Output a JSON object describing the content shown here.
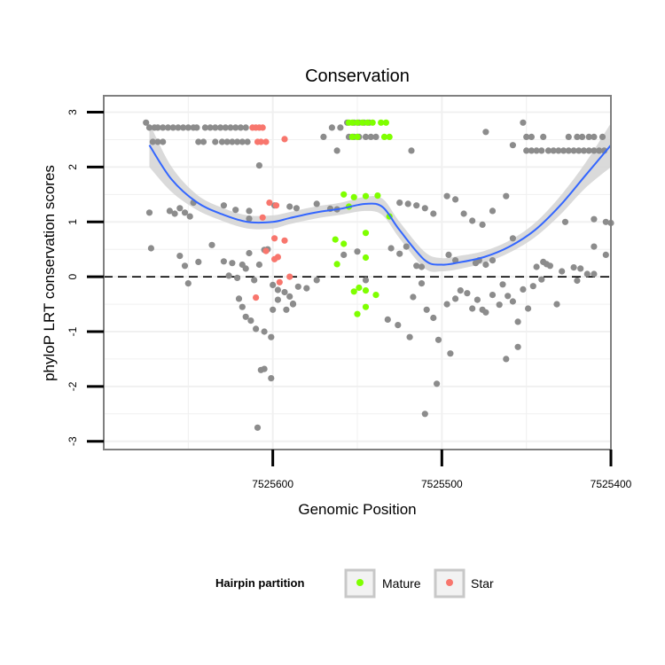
{
  "chart_data": {
    "type": "scatter",
    "title": "Conservation",
    "xlabel": "Genomic Position",
    "ylabel": "phyloP LRT conservation scores",
    "x_reversed": true,
    "xlim": [
      7525400,
      7525700
    ],
    "ylim": [
      -3.15,
      3.3
    ],
    "x_ticks": [
      7525600,
      7525500,
      7525400
    ],
    "x_tick_labels": [
      "7525600",
      "7525500",
      "7525400"
    ],
    "y_ticks": [
      -3,
      -2,
      -1,
      0,
      1,
      2,
      3
    ],
    "y_tick_labels": [
      "-3",
      "-2",
      "-1",
      "0",
      "1",
      "2",
      "3"
    ],
    "reference_line": {
      "y": 0,
      "style": "dashed"
    },
    "grid": true,
    "colors": {
      "Other": "#8c8c8c",
      "Mature": "#7fff00",
      "Star": "#f8766d",
      "smooth": "#3366ff",
      "ribbon": "#d3d3d3",
      "panel_border": "#7f7f7f",
      "grid": "#f0f0f0"
    },
    "legend": {
      "title": "Hairpin partition",
      "position": "bottom",
      "entries": [
        "Mature",
        "Star"
      ]
    },
    "smooth": {
      "x": [
        7525673,
        7525660,
        7525645,
        7525630,
        7525615,
        7525600,
        7525590,
        7525575,
        7525560,
        7525545,
        7525535,
        7525525,
        7525510,
        7525500,
        7525490,
        7525475,
        7525460,
        7525445,
        7525430,
        7525415,
        7525400
      ],
      "y": [
        2.4,
        1.78,
        1.36,
        1.14,
        1.0,
        1.0,
        1.07,
        1.17,
        1.24,
        1.33,
        1.27,
        0.85,
        0.3,
        0.22,
        0.26,
        0.36,
        0.55,
        0.85,
        1.3,
        1.85,
        2.4
      ],
      "se_low": [
        2.0,
        1.55,
        1.22,
        1.02,
        0.88,
        0.88,
        0.96,
        1.06,
        1.13,
        1.2,
        1.12,
        0.7,
        0.15,
        0.1,
        0.14,
        0.25,
        0.44,
        0.72,
        1.13,
        1.62,
        2.0
      ],
      "se_high": [
        2.8,
        2.01,
        1.5,
        1.26,
        1.12,
        1.12,
        1.18,
        1.28,
        1.35,
        1.46,
        1.42,
        1.0,
        0.45,
        0.34,
        0.38,
        0.47,
        0.66,
        0.98,
        1.47,
        2.08,
        2.8
      ]
    },
    "series": [
      {
        "name": "Other",
        "points": [
          [
            7525675,
            2.81
          ],
          [
            7525673,
            2.72
          ],
          [
            7525670,
            2.72
          ],
          [
            7525668,
            2.72
          ],
          [
            7525665,
            2.72
          ],
          [
            7525662,
            2.72
          ],
          [
            7525659,
            2.72
          ],
          [
            7525656,
            2.72
          ],
          [
            7525653,
            2.72
          ],
          [
            7525650,
            2.72
          ],
          [
            7525647,
            2.72
          ],
          [
            7525671,
            2.46
          ],
          [
            7525668,
            2.46
          ],
          [
            7525665,
            2.46
          ],
          [
            7525645,
            2.72
          ],
          [
            7525640,
            2.72
          ],
          [
            7525637,
            2.72
          ],
          [
            7525634,
            2.72
          ],
          [
            7525631,
            2.72
          ],
          [
            7525628,
            2.72
          ],
          [
            7525625,
            2.72
          ],
          [
            7525622,
            2.72
          ],
          [
            7525619,
            2.72
          ],
          [
            7525616,
            2.72
          ],
          [
            7525644,
            2.46
          ],
          [
            7525641,
            2.46
          ],
          [
            7525634,
            2.46
          ],
          [
            7525630,
            2.46
          ],
          [
            7525627,
            2.46
          ],
          [
            7525624,
            2.46
          ],
          [
            7525621,
            2.46
          ],
          [
            7525618,
            2.46
          ],
          [
            7525615,
            2.46
          ],
          [
            7525570,
            2.55
          ],
          [
            7525565,
            2.72
          ],
          [
            7525560,
            2.72
          ],
          [
            7525556,
            2.81
          ],
          [
            7525552,
            2.81
          ],
          [
            7525549,
            2.81
          ],
          [
            7525546,
            2.81
          ],
          [
            7525543,
            2.81
          ],
          [
            7525555,
            2.55
          ],
          [
            7525552,
            2.55
          ],
          [
            7525549,
            2.55
          ],
          [
            7525545,
            2.55
          ],
          [
            7525542,
            2.55
          ],
          [
            7525539,
            2.55
          ],
          [
            7525562,
            2.3
          ],
          [
            7525518,
            2.3
          ],
          [
            7525474,
            2.64
          ],
          [
            7525458,
            2.4
          ],
          [
            7525452,
            2.81
          ],
          [
            7525450,
            2.55
          ],
          [
            7525447,
            2.55
          ],
          [
            7525440,
            2.55
          ],
          [
            7525425,
            2.55
          ],
          [
            7525420,
            2.55
          ],
          [
            7525417,
            2.55
          ],
          [
            7525413,
            2.55
          ],
          [
            7525410,
            2.55
          ],
          [
            7525405,
            2.55
          ],
          [
            7525450,
            2.3
          ],
          [
            7525447,
            2.3
          ],
          [
            7525444,
            2.3
          ],
          [
            7525441,
            2.3
          ],
          [
            7525437,
            2.3
          ],
          [
            7525434,
            2.3
          ],
          [
            7525431,
            2.3
          ],
          [
            7525428,
            2.3
          ],
          [
            7525425,
            2.3
          ],
          [
            7525422,
            2.3
          ],
          [
            7525419,
            2.3
          ],
          [
            7525416,
            2.3
          ],
          [
            7525413,
            2.3
          ],
          [
            7525410,
            2.3
          ],
          [
            7525407,
            2.3
          ],
          [
            7525404,
            2.3
          ],
          [
            7525608,
            2.03
          ],
          [
            7525614,
            1.2
          ],
          [
            7525599,
            1.3
          ],
          [
            7525590,
            1.28
          ],
          [
            7525586,
            1.25
          ],
          [
            7525574,
            1.33
          ],
          [
            7525566,
            1.24
          ],
          [
            7525562,
            1.23
          ],
          [
            7525673,
            1.17
          ],
          [
            7525661,
            1.2
          ],
          [
            7525658,
            1.15
          ],
          [
            7525655,
            1.25
          ],
          [
            7525652,
            1.17
          ],
          [
            7525649,
            1.1
          ],
          [
            7525647,
            1.35
          ],
          [
            7525629,
            1.3
          ],
          [
            7525622,
            1.22
          ],
          [
            7525614,
            1.06
          ],
          [
            7525525,
            1.35
          ],
          [
            7525520,
            1.33
          ],
          [
            7525515,
            1.3
          ],
          [
            7525510,
            1.25
          ],
          [
            7525505,
            1.15
          ],
          [
            7525497,
            1.47
          ],
          [
            7525492,
            1.41
          ],
          [
            7525487,
            1.15
          ],
          [
            7525482,
            1.02
          ],
          [
            7525476,
            0.95
          ],
          [
            7525470,
            1.2
          ],
          [
            7525462,
            1.47
          ],
          [
            7525427,
            1.0
          ],
          [
            7525410,
            1.05
          ],
          [
            7525403,
            1.0
          ],
          [
            7525400,
            0.98
          ],
          [
            7525672,
            0.52
          ],
          [
            7525655,
            0.38
          ],
          [
            7525652,
            0.2
          ],
          [
            7525650,
            -0.12
          ],
          [
            7525644,
            0.27
          ],
          [
            7525636,
            0.58
          ],
          [
            7525629,
            0.28
          ],
          [
            7525626,
            0.02
          ],
          [
            7525624,
            0.25
          ],
          [
            7525621,
            -0.02
          ],
          [
            7525618,
            0.22
          ],
          [
            7525616,
            0.15
          ],
          [
            7525614,
            0.43
          ],
          [
            7525611,
            -0.06
          ],
          [
            7525608,
            0.22
          ],
          [
            7525605,
            0.49
          ],
          [
            7525603,
            0.5
          ],
          [
            7525600,
            -0.15
          ],
          [
            7525597,
            -0.24
          ],
          [
            7525593,
            -0.28
          ],
          [
            7525590,
            -0.36
          ],
          [
            7525588,
            -0.49
          ],
          [
            7525585,
            -0.18
          ],
          [
            7525580,
            -0.21
          ],
          [
            7525574,
            -0.06
          ],
          [
            7525620,
            -0.4
          ],
          [
            7525618,
            -0.55
          ],
          [
            7525616,
            -0.73
          ],
          [
            7525613,
            -0.8
          ],
          [
            7525610,
            -0.95
          ],
          [
            7525605,
            -1.0
          ],
          [
            7525601,
            -1.1
          ],
          [
            7525600,
            -0.6
          ],
          [
            7525597,
            -0.42
          ],
          [
            7525592,
            -0.6
          ],
          [
            7525588,
            -0.5
          ],
          [
            7525607,
            -1.7
          ],
          [
            7525605,
            -1.68
          ],
          [
            7525601,
            -1.85
          ],
          [
            7525609,
            -2.75
          ],
          [
            7525558,
            0.4
          ],
          [
            7525550,
            0.46
          ],
          [
            7525545,
            -0.06
          ],
          [
            7525530,
            0.52
          ],
          [
            7525525,
            0.42
          ],
          [
            7525521,
            0.55
          ],
          [
            7525515,
            0.2
          ],
          [
            7525512,
            0.18
          ],
          [
            7525532,
            -0.78
          ],
          [
            7525526,
            -0.88
          ],
          [
            7525519,
            -1.1
          ],
          [
            7525517,
            -0.37
          ],
          [
            7525512,
            -0.12
          ],
          [
            7525509,
            -0.6
          ],
          [
            7525505,
            -0.75
          ],
          [
            7525502,
            -1.15
          ],
          [
            7525497,
            -0.5
          ],
          [
            7525495,
            -1.4
          ],
          [
            7525492,
            -0.4
          ],
          [
            7525489,
            -0.25
          ],
          [
            7525485,
            -0.3
          ],
          [
            7525482,
            -0.58
          ],
          [
            7525479,
            -0.42
          ],
          [
            7525476,
            -0.6
          ],
          [
            7525474,
            -0.65
          ],
          [
            7525470,
            -0.33
          ],
          [
            7525466,
            -0.51
          ],
          [
            7525464,
            -0.14
          ],
          [
            7525461,
            -0.35
          ],
          [
            7525458,
            -0.45
          ],
          [
            7525455,
            -0.82
          ],
          [
            7525452,
            -0.23
          ],
          [
            7525449,
            -0.58
          ],
          [
            7525446,
            -0.17
          ],
          [
            7525444,
            0.18
          ],
          [
            7525441,
            -0.05
          ],
          [
            7525438,
            0.23
          ],
          [
            7525432,
            -0.5
          ],
          [
            7525420,
            -0.07
          ],
          [
            7525418,
            0.15
          ],
          [
            7525414,
            0.05
          ],
          [
            7525410,
            0.05
          ],
          [
            7525503,
            -1.95
          ],
          [
            7525510,
            -2.5
          ],
          [
            7525462,
            -1.5
          ],
          [
            7525455,
            -1.28
          ],
          [
            7525496,
            0.4
          ],
          [
            7525492,
            0.3
          ],
          [
            7525480,
            0.25
          ],
          [
            7525478,
            0.3
          ],
          [
            7525474,
            0.22
          ],
          [
            7525470,
            0.3
          ],
          [
            7525458,
            0.7
          ],
          [
            7525440,
            0.27
          ],
          [
            7525436,
            0.2
          ],
          [
            7525429,
            0.1
          ],
          [
            7525422,
            0.17
          ],
          [
            7525410,
            0.55
          ],
          [
            7525403,
            0.4
          ]
        ]
      },
      {
        "name": "Mature",
        "points": [
          [
            7525555,
            2.81
          ],
          [
            7525553,
            2.81
          ],
          [
            7525550,
            2.81
          ],
          [
            7525547,
            2.81
          ],
          [
            7525544,
            2.81
          ],
          [
            7525541,
            2.81
          ],
          [
            7525536,
            2.81
          ],
          [
            7525533,
            2.81
          ],
          [
            7525553,
            2.55
          ],
          [
            7525550,
            2.55
          ],
          [
            7525534,
            2.55
          ],
          [
            7525531,
            2.55
          ],
          [
            7525558,
            1.5
          ],
          [
            7525555,
            1.28
          ],
          [
            7525552,
            1.45
          ],
          [
            7525545,
            1.47
          ],
          [
            7525538,
            1.48
          ],
          [
            7525531,
            1.1
          ],
          [
            7525545,
            0.8
          ],
          [
            7525563,
            0.68
          ],
          [
            7525558,
            0.6
          ],
          [
            7525562,
            0.23
          ],
          [
            7525545,
            0.35
          ],
          [
            7525549,
            -0.2
          ],
          [
            7525552,
            -0.27
          ],
          [
            7525545,
            -0.25
          ],
          [
            7525539,
            -0.33
          ],
          [
            7525545,
            -0.55
          ],
          [
            7525550,
            -0.68
          ]
        ]
      },
      {
        "name": "Star",
        "points": [
          [
            7525612,
            2.72
          ],
          [
            7525610,
            2.72
          ],
          [
            7525608,
            2.72
          ],
          [
            7525606,
            2.72
          ],
          [
            7525609,
            2.46
          ],
          [
            7525607,
            2.46
          ],
          [
            7525604,
            2.46
          ],
          [
            7525593,
            2.51
          ],
          [
            7525606,
            1.08
          ],
          [
            7525602,
            1.35
          ],
          [
            7525598,
            1.3
          ],
          [
            7525599,
            0.7
          ],
          [
            7525593,
            0.66
          ],
          [
            7525604,
            0.47
          ],
          [
            7525597,
            0.36
          ],
          [
            7525599,
            0.32
          ],
          [
            7525596,
            -0.1
          ],
          [
            7525590,
            0.0
          ],
          [
            7525610,
            -0.38
          ]
        ]
      }
    ]
  }
}
